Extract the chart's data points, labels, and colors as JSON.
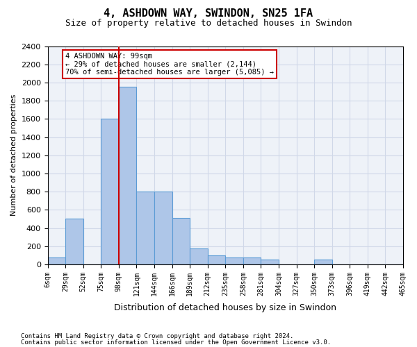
{
  "title": "4, ASHDOWN WAY, SWINDON, SN25 1FA",
  "subtitle": "Size of property relative to detached houses in Swindon",
  "xlabel": "Distribution of detached houses by size in Swindon",
  "ylabel": "Number of detached properties",
  "footer_lines": [
    "Contains HM Land Registry data © Crown copyright and database right 2024.",
    "Contains public sector information licensed under the Open Government Licence v3.0."
  ],
  "bin_labels": [
    "6sqm",
    "29sqm",
    "52sqm",
    "75sqm",
    "98sqm",
    "121sqm",
    "144sqm",
    "166sqm",
    "189sqm",
    "212sqm",
    "235sqm",
    "258sqm",
    "281sqm",
    "304sqm",
    "327sqm",
    "350sqm",
    "373sqm",
    "396sqm",
    "419sqm",
    "442sqm",
    "465sqm"
  ],
  "bar_heights": [
    75,
    500,
    0,
    1600,
    1950,
    800,
    800,
    510,
    175,
    100,
    75,
    75,
    50,
    0,
    0,
    50,
    0,
    0,
    0,
    0
  ],
  "bar_color": "#aec6e8",
  "bar_edge_color": "#5b9bd5",
  "grid_color": "#d0d8e8",
  "bg_color": "#eef2f8",
  "property_line_x": 4,
  "annotation_text": "4 ASHDOWN WAY: 99sqm\n← 29% of detached houses are smaller (2,144)\n70% of semi-detached houses are larger (5,085) →",
  "annotation_box_color": "#ffffff",
  "annotation_border_color": "#cc0000",
  "vline_color": "#cc0000",
  "ylim": [
    0,
    2400
  ],
  "yticks": [
    0,
    200,
    400,
    600,
    800,
    1000,
    1200,
    1400,
    1600,
    1800,
    2000,
    2200,
    2400
  ]
}
